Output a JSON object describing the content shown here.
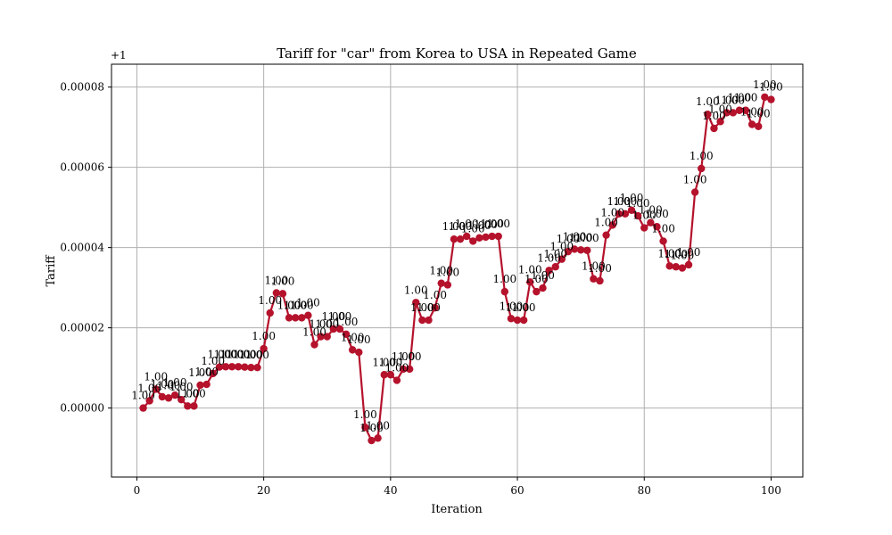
{
  "chart_data": {
    "type": "line",
    "title": "Tariff for \"car\" from Korea to USA in Repeated Game",
    "xlabel": "Iteration",
    "ylabel": "Tariff",
    "y_offset_label": "+1",
    "xlim": [
      -4,
      105
    ],
    "ylim": [
      -1.72e-05,
      8.57e-05
    ],
    "x_ticks": [
      0,
      20,
      40,
      60,
      80,
      100
    ],
    "x_tick_labels": [
      "0",
      "20",
      "40",
      "60",
      "80",
      "100"
    ],
    "y_ticks": [
      0,
      2e-05,
      4e-05,
      6e-05,
      8e-05
    ],
    "y_tick_labels": [
      "0.00000",
      "0.00002",
      "0.00004",
      "0.00006",
      "0.00008"
    ],
    "grid": true,
    "point_label": "1.00",
    "line_color": "#b5122c",
    "marker_color": "#b5122c",
    "series": [
      {
        "x": [
          1,
          2,
          3,
          4,
          5,
          6,
          7,
          8,
          9,
          10,
          11,
          12,
          13,
          14,
          15,
          16,
          17,
          18,
          19,
          20,
          21,
          22,
          23,
          24,
          25,
          26,
          27,
          28,
          29,
          30,
          31,
          32,
          33,
          34,
          35,
          36,
          37,
          38,
          39,
          40,
          41,
          42,
          43,
          44,
          45,
          46,
          47,
          48,
          49,
          50,
          51,
          52,
          53,
          54,
          55,
          56,
          57,
          58,
          59,
          60,
          61,
          62,
          63,
          64,
          65,
          66,
          67,
          68,
          69,
          70,
          71,
          72,
          73,
          74,
          75,
          76,
          77,
          78,
          79,
          80,
          81,
          82,
          83,
          84,
          85,
          86,
          87,
          88,
          89,
          90,
          91,
          92,
          93,
          94,
          95,
          96,
          97,
          98,
          99,
          100
        ],
        "values": [
          0.0,
          1.8e-06,
          4.7e-06,
          2.8e-06,
          2.5e-06,
          3.2e-06,
          2.1e-06,
          5e-07,
          5e-07,
          5.7e-06,
          5.9e-06,
          8.6e-06,
          1.02e-05,
          1.03e-05,
          1.03e-05,
          1.03e-05,
          1.02e-05,
          1.01e-05,
          1.01e-05,
          1.48e-05,
          2.37e-05,
          2.87e-05,
          2.85e-05,
          2.25e-05,
          2.25e-05,
          2.25e-05,
          2.31e-05,
          1.58e-05,
          1.78e-05,
          1.78e-05,
          1.97e-05,
          1.97e-05,
          1.84e-05,
          1.45e-05,
          1.39e-05,
          -4.8e-06,
          -8.1e-06,
          -7.5e-06,
          8.3e-06,
          8.3e-06,
          6.9e-06,
          9.7e-06,
          9.7e-06,
          2.63e-05,
          2.19e-05,
          2.19e-05,
          2.5e-05,
          3.11e-05,
          3.07e-05,
          4.21e-05,
          4.21e-05,
          4.28e-05,
          4.16e-05,
          4.24e-05,
          4.26e-05,
          4.28e-05,
          4.28e-05,
          2.9e-05,
          2.23e-05,
          2.19e-05,
          2.19e-05,
          3.14e-05,
          2.9e-05,
          2.99e-05,
          3.43e-05,
          3.52e-05,
          3.71e-05,
          3.9e-05,
          3.96e-05,
          3.94e-05,
          3.93e-05,
          3.22e-05,
          3.17e-05,
          4.31e-05,
          4.56e-05,
          4.84e-05,
          4.84e-05,
          4.93e-05,
          4.79e-05,
          4.49e-05,
          4.62e-05,
          4.52e-05,
          4.16e-05,
          3.54e-05,
          3.52e-05,
          3.49e-05,
          3.57e-05,
          5.38e-05,
          5.97e-05,
          7.32e-05,
          6.97e-05,
          7.14e-05,
          7.36e-05,
          7.36e-05,
          7.42e-05,
          7.42e-05,
          7.07e-05,
          7.02e-05,
          7.75e-05,
          7.69e-05
        ]
      }
    ]
  }
}
